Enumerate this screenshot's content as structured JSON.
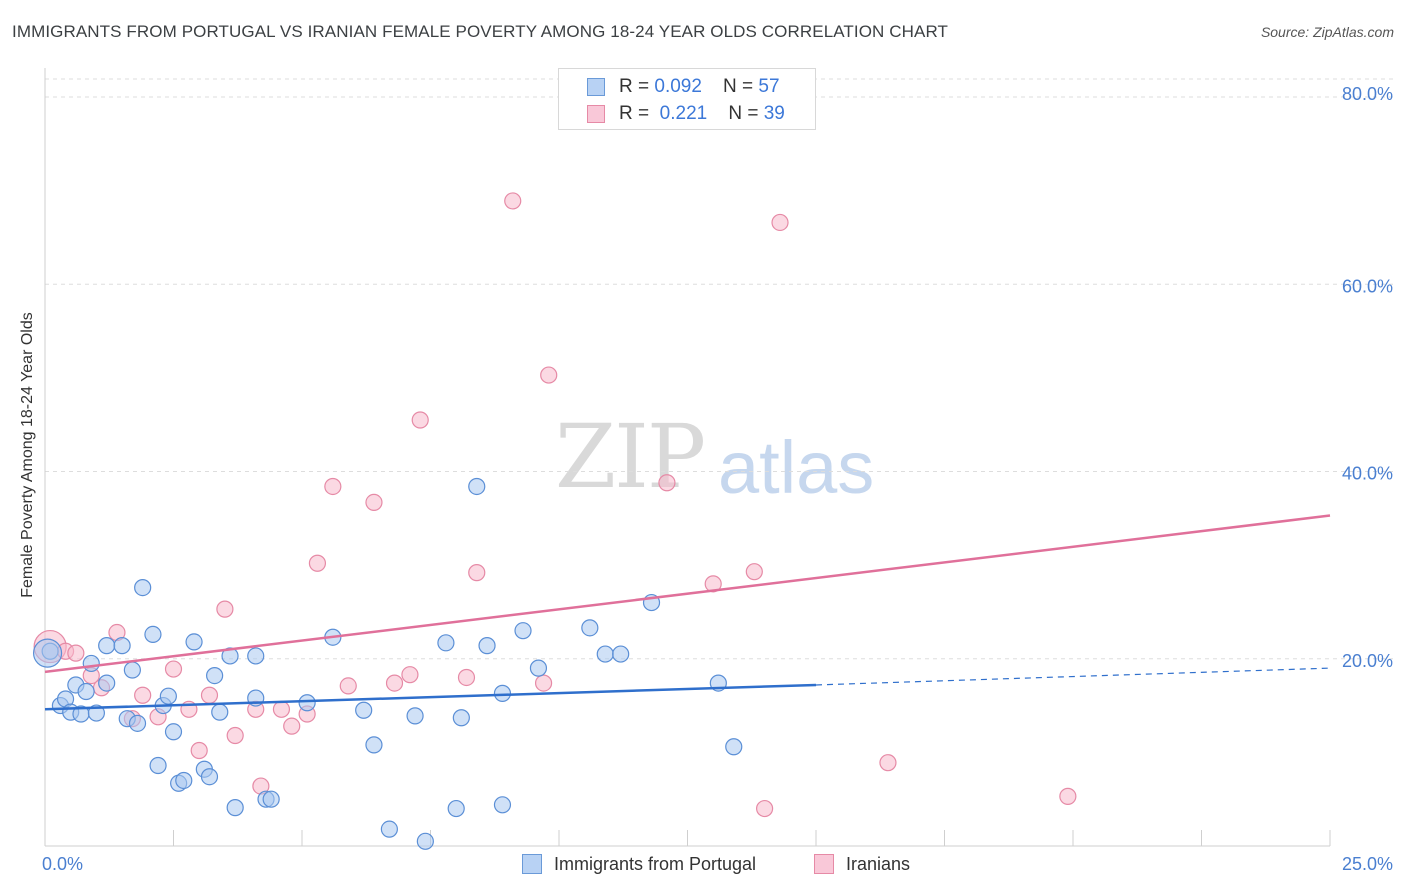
{
  "header": {
    "title": "IMMIGRANTS FROM PORTUGAL VS IRANIAN FEMALE POVERTY AMONG 18-24 YEAR OLDS CORRELATION CHART",
    "source": "Source: ZipAtlas.com"
  },
  "watermark": {
    "zip": "ZIP",
    "atlas": "atlas"
  },
  "legend_top": {
    "rows": [
      {
        "r_label": "R = ",
        "r_value": "0.092",
        "n_label": "N = ",
        "n_value": "57"
      },
      {
        "r_label": "R = ",
        "r_value": "0.221",
        "n_label": "N = ",
        "n_value": "39"
      }
    ]
  },
  "bottom_legend": {
    "series1": "Immigrants from Portugal",
    "series2": "Iranians"
  },
  "chart_data": {
    "type": "scatter",
    "title": "IMMIGRANTS FROM PORTUGAL VS IRANIAN FEMALE POVERTY AMONG 18-24 YEAR OLDS CORRELATION CHART",
    "xlabel": "",
    "ylabel": "Female Poverty Among 18-24 Year Olds",
    "xlim": [
      0,
      25
    ],
    "ylim": [
      0,
      80
    ],
    "x_tick_labels": [
      "0.0%",
      "25.0%"
    ],
    "y_ticks": [
      20,
      40,
      60,
      80
    ],
    "y_tick_labels": [
      "20.0%",
      "40.0%",
      "60.0%",
      "80.0%"
    ],
    "colors": {
      "series1_fill": "#a9c8f0",
      "series1_stroke": "#5b8fd6",
      "series1_line": "#2f6fcc",
      "series2_fill": "#f7b9cc",
      "series2_stroke": "#e68aa6",
      "series2_line": "#e0709a",
      "grid": "#dddddd",
      "axis_text": "#4a7fd0"
    },
    "series": [
      {
        "name": "Immigrants from Portugal",
        "r": 0.092,
        "n": 57,
        "trend": {
          "x0": 0,
          "y0": 14.6,
          "x1": 15,
          "y1": 17.2,
          "dashed_to_x": 25,
          "dashed_to_y": 19.0
        },
        "points": [
          [
            0.1,
            20.8
          ],
          [
            0.3,
            15.0
          ],
          [
            0.4,
            15.7
          ],
          [
            0.5,
            14.3
          ],
          [
            0.6,
            17.2
          ],
          [
            0.7,
            14.1
          ],
          [
            0.8,
            16.5
          ],
          [
            0.9,
            19.5
          ],
          [
            1.0,
            14.2
          ],
          [
            1.2,
            17.4
          ],
          [
            1.2,
            21.4
          ],
          [
            1.5,
            21.4
          ],
          [
            1.6,
            13.6
          ],
          [
            1.7,
            18.8
          ],
          [
            1.8,
            13.1
          ],
          [
            1.9,
            27.6
          ],
          [
            2.1,
            22.6
          ],
          [
            2.2,
            8.6
          ],
          [
            2.3,
            15.0
          ],
          [
            2.4,
            16.0
          ],
          [
            2.5,
            12.2
          ],
          [
            2.6,
            6.7
          ],
          [
            2.7,
            7.0
          ],
          [
            2.9,
            21.8
          ],
          [
            3.1,
            8.2
          ],
          [
            3.2,
            7.4
          ],
          [
            3.3,
            18.2
          ],
          [
            3.4,
            14.3
          ],
          [
            3.6,
            20.3
          ],
          [
            3.7,
            4.1
          ],
          [
            4.1,
            15.8
          ],
          [
            4.1,
            20.3
          ],
          [
            4.3,
            5.0
          ],
          [
            4.4,
            5.0
          ],
          [
            5.1,
            15.3
          ],
          [
            5.6,
            22.3
          ],
          [
            6.2,
            14.5
          ],
          [
            6.4,
            10.8
          ],
          [
            6.7,
            1.8
          ],
          [
            7.2,
            13.9
          ],
          [
            7.4,
            0.5
          ],
          [
            7.8,
            21.7
          ],
          [
            8.0,
            4.0
          ],
          [
            8.1,
            13.7
          ],
          [
            8.4,
            38.4
          ],
          [
            8.6,
            21.4
          ],
          [
            8.9,
            4.4
          ],
          [
            8.9,
            16.3
          ],
          [
            9.3,
            23.0
          ],
          [
            9.6,
            19.0
          ],
          [
            10.6,
            23.3
          ],
          [
            10.9,
            20.5
          ],
          [
            11.2,
            20.5
          ],
          [
            11.8,
            26.0
          ],
          [
            13.1,
            17.4
          ],
          [
            13.4,
            10.6
          ],
          [
            0.05,
            20.6
          ]
        ]
      },
      {
        "name": "Iranians",
        "r": 0.221,
        "n": 39,
        "trend": {
          "x0": 0,
          "y0": 18.6,
          "x1": 25,
          "y1": 35.3
        },
        "points": [
          [
            0.1,
            21.3
          ],
          [
            0.4,
            20.8
          ],
          [
            0.6,
            20.6
          ],
          [
            0.9,
            18.2
          ],
          [
            1.1,
            16.9
          ],
          [
            1.4,
            22.8
          ],
          [
            1.7,
            13.6
          ],
          [
            1.9,
            16.1
          ],
          [
            2.2,
            13.8
          ],
          [
            2.5,
            18.9
          ],
          [
            2.8,
            14.6
          ],
          [
            3.0,
            10.2
          ],
          [
            3.2,
            16.1
          ],
          [
            3.5,
            25.3
          ],
          [
            3.7,
            11.8
          ],
          [
            4.1,
            14.6
          ],
          [
            4.2,
            6.4
          ],
          [
            4.6,
            14.6
          ],
          [
            4.8,
            12.8
          ],
          [
            5.1,
            14.1
          ],
          [
            5.3,
            30.2
          ],
          [
            5.6,
            38.4
          ],
          [
            5.9,
            17.1
          ],
          [
            6.4,
            36.7
          ],
          [
            6.8,
            17.4
          ],
          [
            7.1,
            18.3
          ],
          [
            7.3,
            45.5
          ],
          [
            8.2,
            18.0
          ],
          [
            8.4,
            29.2
          ],
          [
            9.1,
            68.9
          ],
          [
            9.7,
            17.4
          ],
          [
            9.8,
            50.3
          ],
          [
            12.1,
            38.8
          ],
          [
            13.0,
            28.0
          ],
          [
            13.8,
            29.3
          ],
          [
            14.0,
            4.0
          ],
          [
            14.3,
            66.6
          ],
          [
            16.4,
            8.9
          ],
          [
            19.9,
            5.3
          ]
        ]
      }
    ]
  }
}
